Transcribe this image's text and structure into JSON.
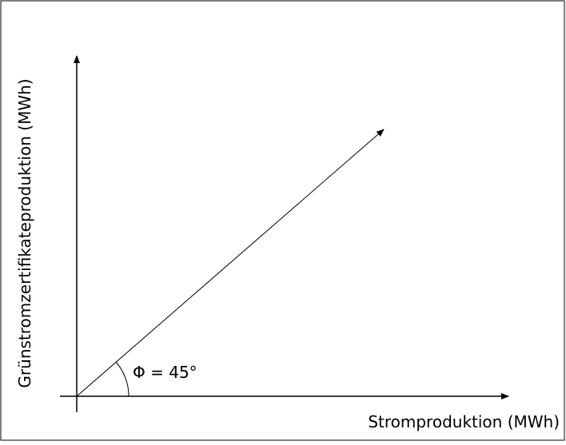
{
  "diagram": {
    "x_axis_label": "Stromproduktion (MWh)",
    "y_axis_label": "Grünstromzertifikateproduktion (MWh)",
    "angle_label": "Φ = 45°"
  }
}
